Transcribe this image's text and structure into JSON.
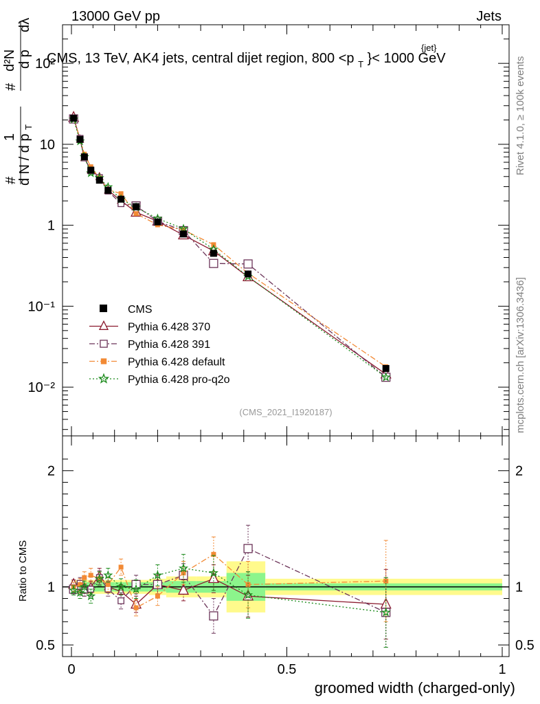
{
  "header": {
    "left": "13000 GeV pp",
    "right": "Jets"
  },
  "side_labels": {
    "rivet": "Rivet 4.1.0, ≥ 100k events",
    "mcplots": "mcplots.cern.ch [arXiv:1306.3436]"
  },
  "chart_data": {
    "type": "line",
    "title": "CMS, 13 TeV, AK4 jets, central dijet region, 800 <p_T^{jet}< 1000 GeV",
    "title_parts": {
      "prefix": "CMS, 13 TeV, AK4 jets, central dijet region, 800 <p",
      "sub": "T",
      "sup": "{jet}",
      "suffix": "}< 1000 GeV"
    },
    "analysis_id": "(CMS_2021_I1920187)",
    "xlabel": "groomed width (charged-only)",
    "ylabel": "1/dN/dpT # dN²/dpT dλ",
    "ratio_ylabel": "Ratio to CMS",
    "x_range": [
      0,
      1
    ],
    "y_range_log": [
      0.0025,
      300
    ],
    "ratio_range": [
      0.4,
      2.3
    ],
    "x_ticks": [
      "0",
      "0.5",
      "1"
    ],
    "x_tick_values": [
      0,
      0.5,
      1
    ],
    "y_ticks": [
      "10⁻²",
      "10⁻¹",
      "1",
      "10",
      "10²"
    ],
    "y_tick_values": [
      0.01,
      0.1,
      1,
      10,
      100
    ],
    "ratio_ticks": [
      "0.5",
      "1",
      "2"
    ],
    "ratio_tick_values": [
      0.5,
      1,
      2
    ],
    "legend_position": "middle-left",
    "x": [
      0.005,
      0.02,
      0.03,
      0.045,
      0.065,
      0.085,
      0.115,
      0.15,
      0.2,
      0.26,
      0.33,
      0.41,
      0.73
    ],
    "data": {
      "name": "CMS",
      "values": [
        21,
        11.5,
        7.0,
        4.8,
        3.6,
        2.7,
        2.1,
        1.7,
        1.1,
        0.78,
        0.45,
        0.25,
        0.017
      ],
      "band_edges": [
        0,
        0.01,
        0.03,
        0.04,
        0.05,
        0.075,
        0.1,
        0.13,
        0.18,
        0.22,
        0.29,
        0.36,
        0.45,
        1.0
      ],
      "band_inner": [
        0.04,
        0.04,
        0.04,
        0.04,
        0.04,
        0.04,
        0.04,
        0.04,
        0.04,
        0.05,
        0.05,
        0.12,
        0.03
      ],
      "band_outer": [
        0.06,
        0.06,
        0.06,
        0.06,
        0.06,
        0.06,
        0.06,
        0.06,
        0.07,
        0.09,
        0.09,
        0.22,
        0.07
      ]
    },
    "series": [
      {
        "name": "Pythia 6.428 370",
        "color": "#8b1a2e",
        "dash": "",
        "marker": "triangle",
        "ratio": [
          1.02,
          1.0,
          0.97,
          1.0,
          1.1,
          1.0,
          0.96,
          0.85,
          1.02,
          0.97,
          1.07,
          0.92,
          0.85
        ],
        "err": [
          0.04,
          0.05,
          0.05,
          0.05,
          0.06,
          0.05,
          0.06,
          0.07,
          0.08,
          0.09,
          0.12,
          0.18,
          0.3
        ]
      },
      {
        "name": "Pythia 6.428 391",
        "color": "#6b3358",
        "dash": "8 3 2 3",
        "marker": "square",
        "ratio": [
          0.98,
          1.03,
          0.97,
          0.98,
          1.08,
          0.98,
          0.88,
          1.02,
          1.02,
          1.1,
          0.75,
          1.33,
          0.78
        ],
        "err": [
          0.04,
          0.05,
          0.05,
          0.06,
          0.06,
          0.06,
          0.07,
          0.08,
          0.09,
          0.1,
          0.15,
          0.2,
          0.3
        ]
      },
      {
        "name": "Pythia 6.428 default",
        "color": "#f28a35",
        "dash": "8 3 2 3",
        "marker": "filled-square",
        "ratio": [
          1.0,
          1.02,
          1.08,
          1.1,
          1.07,
          1.02,
          1.17,
          0.82,
          0.92,
          1.12,
          1.28,
          1.02,
          1.05
        ],
        "err": [
          0.04,
          0.05,
          0.05,
          0.06,
          0.06,
          0.06,
          0.07,
          0.07,
          0.08,
          0.1,
          0.15,
          0.2,
          0.35
        ]
      },
      {
        "name": "Pythia 6.428 pro-q2o",
        "color": "#1b8a1b",
        "dash": "2 3",
        "marker": "star",
        "ratio": [
          0.97,
          0.95,
          1.0,
          0.92,
          1.07,
          1.1,
          1.0,
          0.98,
          1.1,
          1.16,
          1.12,
          0.93,
          0.78
        ],
        "err": [
          0.04,
          0.05,
          0.05,
          0.06,
          0.06,
          0.06,
          0.07,
          0.08,
          0.09,
          0.12,
          0.15,
          0.2,
          0.3
        ]
      }
    ]
  }
}
